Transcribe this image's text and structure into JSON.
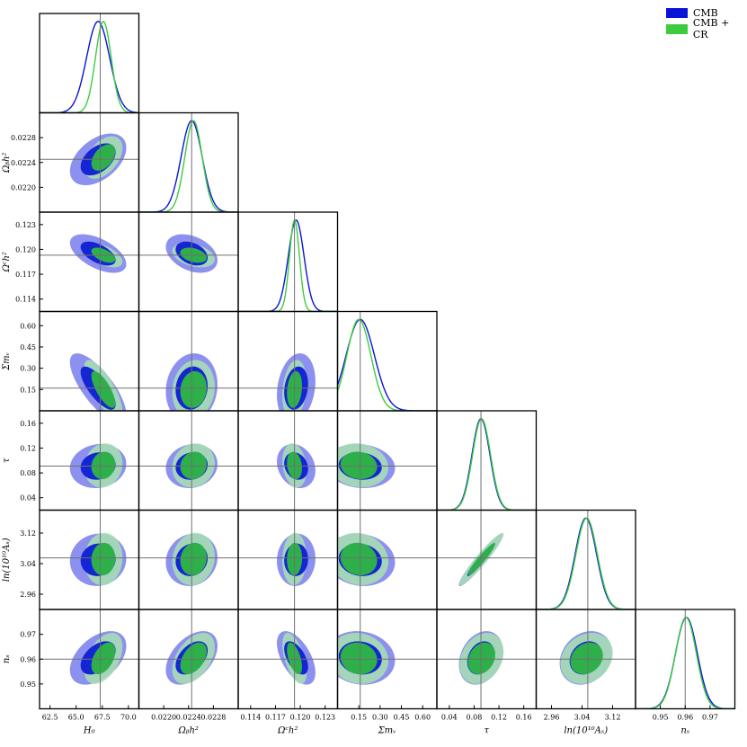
{
  "chart_data": {
    "type": "corner",
    "legend_position": "top-right",
    "params": [
      {
        "label": "H₀",
        "range": [
          61.5,
          71.0
        ],
        "ticks": [
          62.5,
          65.0,
          67.5,
          70.0
        ],
        "tick_labels": [
          "62.5",
          "65.0",
          "67.5",
          "70.0"
        ],
        "marker": 67.3
      },
      {
        "label": "Ωᵦh²",
        "range": [
          0.0216,
          0.0232
        ],
        "ticks": [
          0.022,
          0.0224,
          0.0228
        ],
        "tick_labels": [
          "0.0220",
          "0.0224",
          "0.0228"
        ],
        "y_ticks": [
          0.022,
          0.0224,
          0.0228
        ],
        "y_tick_labels": [
          "0.0220",
          "0.0224",
          "0.0228"
        ],
        "marker": 0.02245
      },
      {
        "label": "Ωᶜh²",
        "range": [
          0.1125,
          0.1245
        ],
        "ticks": [
          0.114,
          0.117,
          0.12,
          0.123
        ],
        "tick_labels": [
          "0.114",
          "0.117",
          "0.120",
          "0.123"
        ],
        "marker": 0.1193
      },
      {
        "label": "Σmᵥ",
        "range": [
          0.0,
          0.7
        ],
        "ticks": [
          0.15,
          0.3,
          0.45,
          0.6
        ],
        "tick_labels": [
          "0.15",
          "0.30",
          "0.45",
          "0.60"
        ],
        "marker": 0.16
      },
      {
        "label": "τ",
        "range": [
          0.02,
          0.18
        ],
        "ticks": [
          0.04,
          0.08,
          0.12,
          0.16
        ],
        "tick_labels": [
          "0.04",
          "0.08",
          "0.12",
          "0.16"
        ],
        "marker": 0.091
      },
      {
        "label": "ln(10¹⁰Aₛ)",
        "range": [
          2.92,
          3.18
        ],
        "ticks": [
          2.96,
          3.04,
          3.12
        ],
        "tick_labels": [
          "2.96",
          "3.04",
          "3.12"
        ],
        "marker": 3.055
      },
      {
        "label": "nₛ",
        "range": [
          0.94,
          0.98
        ],
        "ticks": [
          0.95,
          0.96,
          0.97
        ],
        "tick_labels": [
          "0.95",
          "0.96",
          "0.97"
        ],
        "marker": 0.96
      }
    ],
    "series": [
      {
        "name": "CMB",
        "color": "#0a14d6",
        "fill_outer": "#8c90ee",
        "fill_inner": "#1525d4",
        "means": [
          67.1,
          0.02245,
          0.1195,
          0.16,
          0.091,
          3.05,
          0.9605
        ],
        "sigmas": [
          1.1,
          0.00017,
          0.00095,
          0.1,
          0.0145,
          0.028,
          0.0044
        ]
      },
      {
        "name": "CMB + CR",
        "color": "#3dcc3d",
        "fill_outer": "#a8e0b0",
        "fill_inner": "#2db04a",
        "means": [
          67.6,
          0.02248,
          0.1193,
          0.15,
          0.092,
          3.052,
          0.9603
        ],
        "sigmas": [
          0.75,
          0.00014,
          0.0006,
          0.085,
          0.0145,
          0.028,
          0.0042
        ]
      }
    ],
    "correlations": [
      [
        1,
        0.45,
        -0.55,
        -0.75,
        0.1,
        0.05,
        0.45
      ],
      [
        0.45,
        1,
        -0.35,
        0.1,
        0.1,
        0.1,
        0.45
      ],
      [
        -0.55,
        -0.35,
        1,
        0.2,
        -0.2,
        0.05,
        -0.55
      ],
      [
        -0.75,
        0.1,
        0.2,
        1,
        -0.1,
        -0.1,
        -0.1
      ],
      [
        0.1,
        0.1,
        -0.2,
        -0.1,
        1,
        0.95,
        0.25
      ],
      [
        0.05,
        0.1,
        0.05,
        -0.1,
        0.95,
        1,
        0.2
      ],
      [
        0.45,
        0.45,
        -0.55,
        -0.1,
        0.25,
        0.2,
        1
      ]
    ]
  }
}
